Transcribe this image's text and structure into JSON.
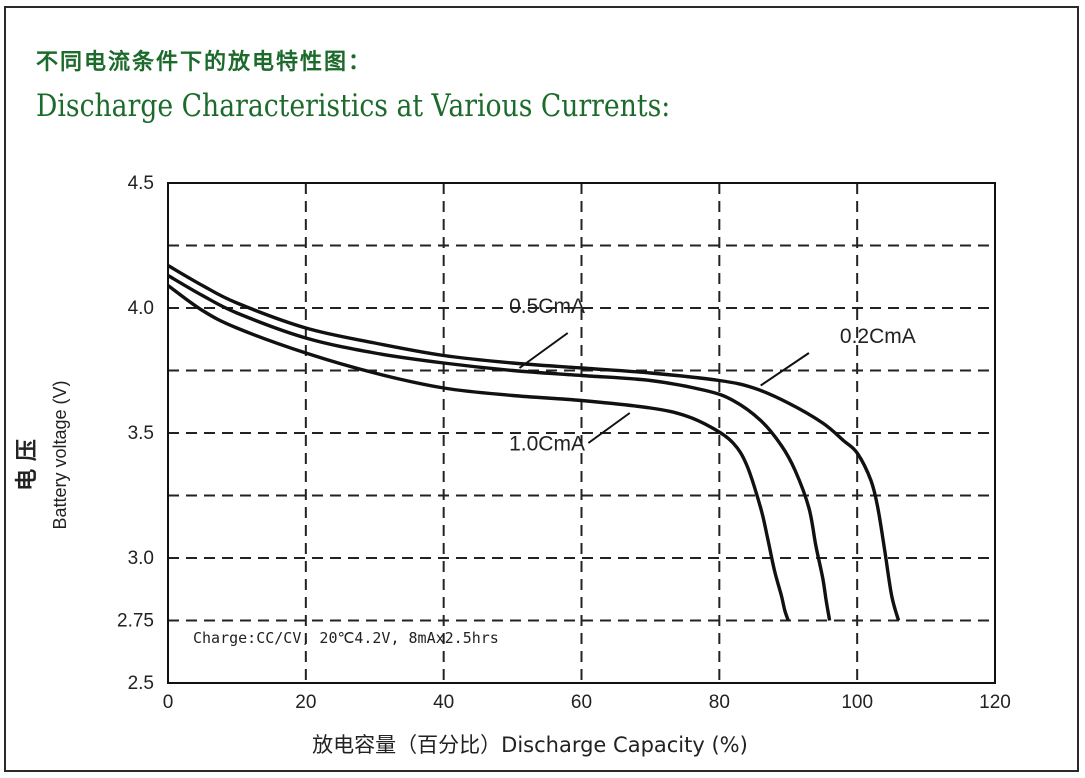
{
  "title_cn": "不同电流条件下的放电特性图：",
  "title_en": "Discharge Characteristics at Various Currents:",
  "chart_data": {
    "type": "line",
    "xlabel": "放电容量（百分比）Discharge Capacity (%)",
    "ylabel": "Battery voltage (V)",
    "ylabel_cn": "电 压",
    "xlim": [
      0,
      120
    ],
    "ylim": [
      2.5,
      4.5
    ],
    "x_ticks": [
      "0",
      "20",
      "40",
      "60",
      "80",
      "100",
      "120"
    ],
    "y_ticks": [
      "2.5",
      "2.75",
      "3.0",
      "3.5",
      "4.0",
      "4.5"
    ],
    "grid": true,
    "annotation": "Charge:CC/CV, 20℃4.2V, 8mAx2.5hrs",
    "series": [
      {
        "name": "0.2CmA",
        "x": [
          0,
          5,
          10,
          20,
          30,
          40,
          50,
          60,
          70,
          80,
          85,
          90,
          95,
          98,
          100,
          102,
          103,
          104,
          105,
          106
        ],
        "y": [
          4.17,
          4.09,
          4.02,
          3.92,
          3.86,
          3.81,
          3.78,
          3.76,
          3.74,
          3.71,
          3.68,
          3.62,
          3.54,
          3.47,
          3.42,
          3.31,
          3.2,
          3.03,
          2.85,
          2.75
        ]
      },
      {
        "name": "0.5CmA",
        "x": [
          0,
          5,
          10,
          20,
          30,
          40,
          50,
          60,
          70,
          78,
          82,
          86,
          89,
          91,
          93,
          94,
          95,
          95.5,
          96
        ],
        "y": [
          4.13,
          4.05,
          3.98,
          3.88,
          3.82,
          3.78,
          3.75,
          3.73,
          3.71,
          3.67,
          3.63,
          3.55,
          3.45,
          3.35,
          3.2,
          3.05,
          2.92,
          2.83,
          2.75
        ]
      },
      {
        "name": "1.0CmA",
        "x": [
          0,
          5,
          10,
          20,
          30,
          40,
          50,
          60,
          70,
          75,
          79,
          82,
          84,
          86,
          87,
          88,
          89,
          89.5,
          90
        ],
        "y": [
          4.09,
          3.99,
          3.92,
          3.82,
          3.74,
          3.68,
          3.65,
          3.63,
          3.6,
          3.57,
          3.52,
          3.46,
          3.37,
          3.2,
          3.08,
          2.95,
          2.85,
          2.79,
          2.75
        ]
      }
    ]
  }
}
